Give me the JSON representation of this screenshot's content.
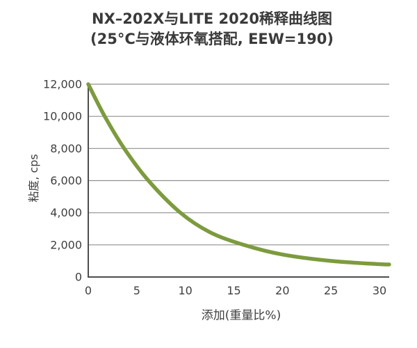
{
  "title": {
    "line1": "NX–202X与LITE 2020稀释曲线图",
    "line2": "(25°C与液体环氧搭配, EEW=190)"
  },
  "colors": {
    "curve": "#7d9b3e",
    "grid": "#8f8f8f",
    "axis": "#4d4d4d",
    "text": "#3f3f3f",
    "background": "#ffffff"
  },
  "chart_data": {
    "type": "line",
    "title": "NX–202X与LITE 2020稀释曲线图",
    "subtitle": "(25°C与液体环氧搭配, EEW=190)",
    "xlabel": "添加(重量比%)",
    "ylabel": "粘度, cps",
    "xlim": [
      0,
      31
    ],
    "ylim": [
      0,
      12000
    ],
    "x_ticks": [
      0,
      5,
      10,
      15,
      20,
      25,
      30
    ],
    "y_ticks": [
      0,
      2000,
      4000,
      6000,
      8000,
      10000,
      12000
    ],
    "y_tick_labels": [
      "0",
      "2,000",
      "4,000",
      "6,000",
      "8,000",
      "10,000",
      "12,000"
    ],
    "grid": "horizontal-only",
    "legend": "none",
    "series": [
      {
        "name": "NX-202X dilution curve",
        "color": "#7d9b3e",
        "points": [
          [
            0,
            12000
          ],
          [
            1.7,
            10000
          ],
          [
            3.7,
            8000
          ],
          [
            6.2,
            6000
          ],
          [
            9.5,
            4000
          ],
          [
            12.5,
            2800
          ],
          [
            16,
            2000
          ],
          [
            20,
            1400
          ],
          [
            25,
            1000
          ],
          [
            30,
            800
          ],
          [
            31,
            780
          ]
        ]
      }
    ]
  }
}
